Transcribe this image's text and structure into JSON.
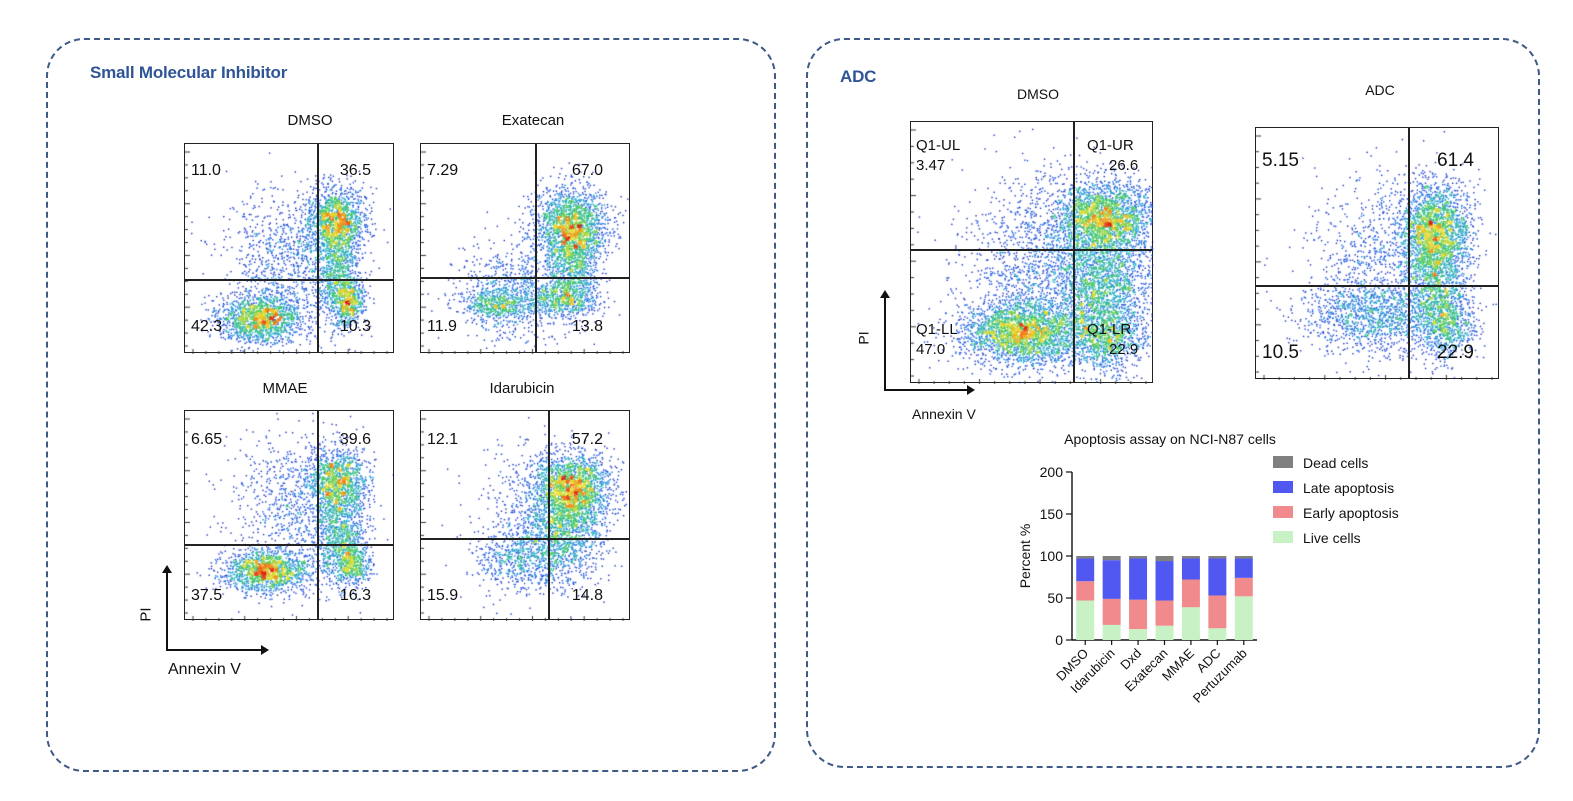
{
  "left_panel": {
    "title": "Small Molecular Inhibitor",
    "plots": [
      {
        "title": "DMSO",
        "ul": "11.0",
        "ur": "36.5",
        "ll": "42.3",
        "lr": "10.3"
      },
      {
        "title": "Exatecan",
        "ul": "7.29",
        "ur": "67.0",
        "ll": "11.9",
        "lr": "13.8"
      },
      {
        "title": "MMAE",
        "ul": "6.65",
        "ur": "39.6",
        "ll": "37.5",
        "lr": "16.3"
      },
      {
        "title": "Idarubicin",
        "ul": "12.1",
        "ur": "57.2",
        "ll": "15.9",
        "lr": "14.8"
      }
    ],
    "y_axis_label": "PI",
    "x_axis_label": "Annexin V"
  },
  "right_panel": {
    "title": "ADC",
    "dmso": {
      "title": "DMSO",
      "ul_name": "Q1-UL",
      "ul": "3.47",
      "ur_name": "Q1-UR",
      "ur": "26.6",
      "ll_name": "Q1-LL",
      "ll": "47.0",
      "lr_name": "Q1-LR",
      "lr": "22.9"
    },
    "adc": {
      "title": "ADC",
      "ul": "5.15",
      "ur": "61.4",
      "ll": "10.5",
      "lr": "22.9"
    },
    "y_axis_label": "PI",
    "x_axis_label": "Annexin V"
  },
  "chart_data": {
    "type": "bar",
    "stacked": true,
    "title": "Apoptosis assay on NCI-N87 cells",
    "ylabel": "Percent %",
    "xlabel": "",
    "ylim": [
      0,
      200
    ],
    "yticks": [
      "0",
      "50",
      "100",
      "150",
      "200"
    ],
    "categories": [
      "DMSO",
      "Idarubicin",
      "Dxd",
      "Exatecan",
      "MMAE",
      "ADC",
      "Pertuzumab"
    ],
    "series": [
      {
        "name": "Live cells",
        "color": "#c8f2c5",
        "values": [
          47,
          18,
          13,
          17,
          39,
          14,
          52
        ]
      },
      {
        "name": "Early apoptosis",
        "color": "#f08a8c",
        "values": [
          23,
          31,
          35,
          30,
          33,
          39,
          22
        ]
      },
      {
        "name": "Late apoptosis",
        "color": "#5158f2",
        "values": [
          27,
          46,
          49,
          47,
          25,
          44,
          23
        ]
      },
      {
        "name": "Dead cells",
        "color": "#808080",
        "values": [
          3,
          5,
          3,
          6,
          3,
          3,
          3
        ]
      }
    ],
    "legend_position": "right"
  }
}
